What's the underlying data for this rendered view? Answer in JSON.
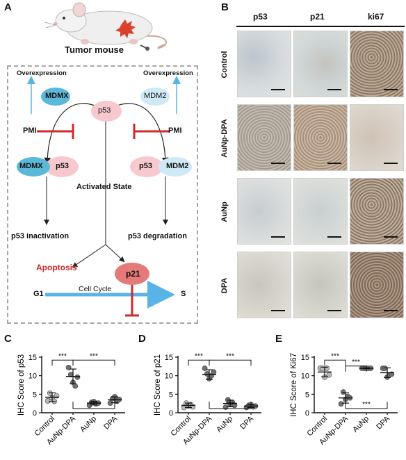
{
  "panels": {
    "a": {
      "letter": "A",
      "mouse_caption": "Tumor mouse"
    },
    "b": {
      "letter": "B",
      "columns": [
        "p53",
        "p21",
        "ki67"
      ],
      "rows": [
        "Control",
        "AuNp-DPA",
        "AuNp",
        "DPA"
      ]
    },
    "c": {
      "letter": "C"
    },
    "d": {
      "letter": "D"
    },
    "e": {
      "letter": "E"
    }
  },
  "pathway": {
    "overexpression_left": "Overexpression",
    "overexpression_right": "Overexpression",
    "mdmx": "MDMX",
    "mdm2": "MDM2",
    "p53": "p53",
    "pmi_left": "PMI",
    "pmi_right": "PMI",
    "complex_left_a": "MDMX",
    "complex_left_b": "p53",
    "complex_right_a": "p53",
    "complex_right_b": "MDM2",
    "activated": "Activated State",
    "inactivation": "p53 inactivation",
    "degradation": "p53 degradation",
    "apoptosis": "Apoptosis",
    "p21": "p21",
    "cell_cycle": "Cell Cycle",
    "g1": "G1",
    "s": "S",
    "colors": {
      "mdm": "#5ab8d8",
      "p53": "#f7c9cf",
      "p21": "#e57a7a",
      "inhibit": "#d62728",
      "cycle_arrow": "#58b4e6",
      "apoptosis": "#d62728"
    }
  },
  "chart_data": [
    {
      "type": "scatter",
      "ylabel": "IHC Score of p53",
      "categories": [
        "Control",
        "AuNp-DPA",
        "AuNp",
        "DPA"
      ],
      "ylim": [
        0,
        15
      ],
      "yticks": [
        0,
        5,
        10,
        15
      ],
      "means": [
        4.2,
        9.8,
        2.6,
        3.5
      ],
      "sd": [
        1.2,
        2.0,
        0.5,
        0.8
      ],
      "points": [
        [
          3.2,
          5.3,
          4.0,
          3.1,
          4.6
        ],
        [
          12.2,
          10.3,
          8.2,
          7.2,
          9.6
        ],
        [
          2.0,
          2.8,
          3.0,
          2.4,
          2.6
        ],
        [
          2.6,
          3.8,
          4.3,
          3.1,
          3.6
        ]
      ],
      "sig_labels": [
        "***",
        "***",
        "***"
      ],
      "colors": {
        "ctrl": "#b8b8b8",
        "mid": "#707070"
      }
    },
    {
      "type": "scatter",
      "ylabel": "IHC Score of p21",
      "categories": [
        "Control",
        "AuNp-DPA",
        "AuNp",
        "DPA"
      ],
      "ylim": [
        0,
        15
      ],
      "yticks": [
        0,
        5,
        10,
        15
      ],
      "means": [
        2.0,
        10.3,
        2.5,
        1.8
      ],
      "sd": [
        0.6,
        1.3,
        0.9,
        0.4
      ],
      "points": [
        [
          1.4,
          2.6,
          1.8,
          2.2,
          1.6
        ],
        [
          12.0,
          10.5,
          9.2,
          10.0,
          11.0
        ],
        [
          1.5,
          3.5,
          2.4,
          2.8,
          2.0
        ],
        [
          1.4,
          2.0,
          2.2,
          1.6,
          1.8
        ]
      ],
      "sig_labels": [
        "***",
        "***",
        "***"
      ],
      "colors": {
        "ctrl": "#b8b8b8",
        "mid": "#707070"
      }
    },
    {
      "type": "scatter",
      "ylabel": "IHC Score of Ki67",
      "categories": [
        "Control",
        "AuNp-DPA",
        "AuNp",
        "DPA"
      ],
      "ylim": [
        0,
        15
      ],
      "yticks": [
        0,
        5,
        10,
        15
      ],
      "means": [
        11.0,
        4.0,
        12.0,
        10.8
      ],
      "sd": [
        1.3,
        1.4,
        0.1,
        1.3
      ],
      "points": [
        [
          12.0,
          12.0,
          9.6,
          12.0,
          10.2
        ],
        [
          2.4,
          5.6,
          3.6,
          4.4,
          4.0
        ],
        [
          12.0,
          12.0,
          12.0,
          12.0,
          12.0
        ],
        [
          12.0,
          12.0,
          9.6,
          10.2,
          10.4
        ]
      ],
      "sig_labels": [
        "***",
        "***",
        "***"
      ],
      "colors": {
        "ctrl": "#b8b8b8",
        "mid": "#707070"
      }
    }
  ]
}
